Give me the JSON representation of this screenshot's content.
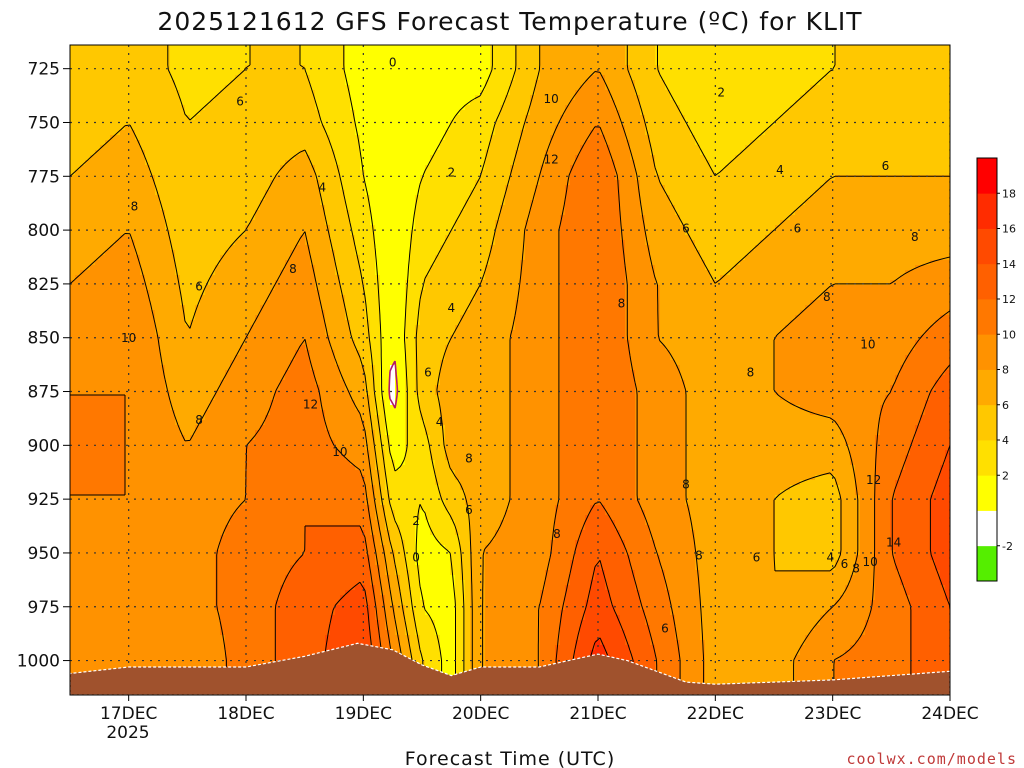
{
  "chart_data": {
    "type": "heatmap",
    "title": "2025121612 GFS Forecast Temperature (ºC) for KLIT",
    "xlabel": "Forecast Time (UTC)",
    "ylabel": "",
    "y_ticks": [
      725,
      750,
      775,
      800,
      825,
      850,
      875,
      900,
      925,
      950,
      975,
      1000
    ],
    "ylim": [
      1016,
      714
    ],
    "x_ticks": [
      "17DEC",
      "18DEC",
      "19DEC",
      "20DEC",
      "21DEC",
      "22DEC",
      "23DEC",
      "24DEC"
    ],
    "x_year_label": "2025",
    "xlim": [
      -0.5,
      7.0
    ],
    "grid": true,
    "colorbar": {
      "placement": "right",
      "levels": [
        -4,
        -2,
        0,
        2,
        4,
        6,
        8,
        10,
        12,
        14,
        16,
        18,
        20
      ],
      "tick_labels": [
        "-2",
        "2",
        "4",
        "6",
        "8",
        "10",
        "12",
        "14",
        "16",
        "18"
      ],
      "colors": [
        "#55ee00",
        "#ffffff",
        "#ffff00",
        "#ffe000",
        "#ffc800",
        "#ffaa00",
        "#ff9200",
        "#ff7800",
        "#ff6000",
        "#ff4a00",
        "#ff2c00",
        "#ff0000"
      ]
    },
    "temperature_profiles": {
      "pressure_levels": [
        1000,
        975,
        950,
        925,
        900,
        875,
        850,
        825,
        800,
        775,
        750,
        725
      ],
      "times": [
        -0.5,
        0.0,
        0.5,
        1.0,
        1.5,
        2.0,
        2.25,
        2.5,
        2.75,
        3.0,
        3.5,
        4.0,
        4.5,
        5.0,
        5.5,
        6.0,
        6.5,
        7.0
      ],
      "series": [
        {
          "time": -0.5,
          "values": [
            8,
            9,
            9.5,
            10,
            10,
            10,
            9,
            8,
            7,
            6,
            5,
            4
          ]
        },
        {
          "time": 0.0,
          "values": [
            8,
            9,
            10,
            10,
            10,
            10,
            10,
            9,
            8,
            7,
            6,
            5
          ]
        },
        {
          "time": 0.5,
          "values": [
            8,
            9,
            9,
            9,
            8,
            7,
            6,
            5.5,
            5,
            4.5,
            4,
            3.5
          ]
        },
        {
          "time": 1.0,
          "values": [
            11,
            11,
            11,
            10,
            10,
            9,
            8,
            7,
            6,
            5,
            4.5,
            4
          ]
        },
        {
          "time": 1.5,
          "values": [
            13,
            13,
            12,
            12,
            11,
            11,
            10,
            9,
            8,
            7,
            5,
            4
          ]
        },
        {
          "time": 2.0,
          "values": [
            16,
            15,
            13,
            11,
            9,
            7,
            5,
            4,
            3,
            2,
            1.5,
            1
          ]
        },
        {
          "time": 2.25,
          "values": [
            10,
            8,
            6,
            3,
            1,
            -1,
            0,
            0,
            0,
            0,
            0,
            0
          ]
        },
        {
          "time": 2.5,
          "values": [
            4,
            2,
            1,
            2,
            3,
            5,
            5,
            4,
            3,
            2,
            1,
            0
          ]
        },
        {
          "time": 2.75,
          "values": [
            1,
            1,
            2,
            5,
            7,
            7,
            6,
            5,
            4,
            3,
            2,
            1
          ]
        },
        {
          "time": 3.0,
          "values": [
            8,
            8,
            8,
            7,
            7,
            7,
            7,
            6,
            5,
            4,
            3,
            1
          ]
        },
        {
          "time": 3.5,
          "values": [
            10,
            10,
            9,
            9,
            9,
            9,
            9,
            9,
            9,
            8,
            7,
            6
          ]
        },
        {
          "time": 4.0,
          "values": [
            17,
            15,
            14,
            12,
            12,
            12,
            12,
            12,
            12,
            12,
            10,
            8
          ]
        },
        {
          "time": 4.5,
          "values": [
            12,
            11,
            10,
            9,
            9,
            9,
            8,
            8,
            7,
            6,
            5,
            4
          ]
        },
        {
          "time": 5.0,
          "values": [
            7,
            7,
            7,
            7,
            7,
            7,
            7,
            6,
            5,
            4,
            3,
            2
          ]
        },
        {
          "time": 5.5,
          "values": [
            7,
            6,
            6,
            6,
            7,
            8,
            8,
            7,
            6,
            5,
            4,
            3
          ]
        },
        {
          "time": 6.0,
          "values": [
            10,
            8,
            5,
            5,
            7,
            9,
            9,
            8,
            7,
            6,
            5,
            4
          ]
        },
        {
          "time": 6.5,
          "values": [
            11,
            11,
            12,
            12,
            11,
            10,
            9,
            8,
            7,
            6,
            5,
            4
          ]
        },
        {
          "time": 7.0,
          "values": [
            14,
            14,
            15,
            15,
            14,
            13,
            11,
            9,
            7,
            6,
            5,
            4
          ]
        }
      ]
    },
    "contour_labels": [
      {
        "text": "0",
        "time": 2.25,
        "pressure": 724
      },
      {
        "text": "2",
        "time": 2.75,
        "pressure": 775
      },
      {
        "text": "4",
        "time": 1.65,
        "pressure": 782
      },
      {
        "text": "4",
        "time": 2.75,
        "pressure": 838
      },
      {
        "text": "6",
        "time": 0.95,
        "pressure": 742
      },
      {
        "text": "8",
        "time": 0.05,
        "pressure": 791
      },
      {
        "text": "6",
        "time": 0.6,
        "pressure": 828
      },
      {
        "text": "8",
        "time": 1.4,
        "pressure": 820
      },
      {
        "text": "10",
        "time": 0.0,
        "pressure": 852
      },
      {
        "text": "12",
        "time": 1.55,
        "pressure": 883
      },
      {
        "text": "8",
        "time": 0.6,
        "pressure": 890
      },
      {
        "text": "10",
        "time": 1.8,
        "pressure": 905
      },
      {
        "text": "6",
        "time": 2.55,
        "pressure": 868
      },
      {
        "text": "4",
        "time": 2.65,
        "pressure": 891
      },
      {
        "text": "8",
        "time": 2.9,
        "pressure": 908
      },
      {
        "text": "6",
        "time": 2.9,
        "pressure": 932
      },
      {
        "text": "2",
        "time": 2.45,
        "pressure": 937
      },
      {
        "text": "0",
        "time": 2.45,
        "pressure": 954
      },
      {
        "text": "10",
        "time": 3.6,
        "pressure": 741
      },
      {
        "text": "12",
        "time": 3.6,
        "pressure": 769
      },
      {
        "text": "8",
        "time": 4.2,
        "pressure": 836
      },
      {
        "text": "8",
        "time": 3.65,
        "pressure": 943
      },
      {
        "text": "8",
        "time": 4.75,
        "pressure": 920
      },
      {
        "text": "8",
        "time": 4.86,
        "pressure": 953
      },
      {
        "text": "6",
        "time": 4.57,
        "pressure": 987
      },
      {
        "text": "2",
        "time": 5.05,
        "pressure": 738
      },
      {
        "text": "4",
        "time": 5.55,
        "pressure": 774
      },
      {
        "text": "6",
        "time": 6.45,
        "pressure": 772
      },
      {
        "text": "6",
        "time": 4.75,
        "pressure": 801
      },
      {
        "text": "6",
        "time": 5.7,
        "pressure": 801
      },
      {
        "text": "8",
        "time": 6.7,
        "pressure": 805
      },
      {
        "text": "8",
        "time": 5.95,
        "pressure": 833
      },
      {
        "text": "10",
        "time": 6.3,
        "pressure": 855
      },
      {
        "text": "8",
        "time": 5.3,
        "pressure": 868
      },
      {
        "text": "12",
        "time": 6.35,
        "pressure": 918
      },
      {
        "text": "14",
        "time": 6.52,
        "pressure": 947
      },
      {
        "text": "6",
        "time": 5.35,
        "pressure": 954
      },
      {
        "text": "4",
        "time": 5.98,
        "pressure": 954
      },
      {
        "text": "6",
        "time": 6.1,
        "pressure": 957
      },
      {
        "text": "8",
        "time": 6.2,
        "pressure": 959
      },
      {
        "text": "10",
        "time": 6.32,
        "pressure": 956
      }
    ],
    "terrain": {
      "color": "#a0522d",
      "surface_pressure": [
        [
          -0.5,
          1006
        ],
        [
          0.0,
          1003
        ],
        [
          0.5,
          1003
        ],
        [
          1.0,
          1003
        ],
        [
          1.5,
          998
        ],
        [
          1.95,
          992
        ],
        [
          2.25,
          995
        ],
        [
          2.5,
          1002
        ],
        [
          2.75,
          1007
        ],
        [
          3.0,
          1003
        ],
        [
          3.5,
          1003
        ],
        [
          4.0,
          997
        ],
        [
          4.25,
          1000
        ],
        [
          4.5,
          1005
        ],
        [
          4.75,
          1010
        ],
        [
          5.0,
          1011
        ],
        [
          5.5,
          1010
        ],
        [
          6.0,
          1009
        ],
        [
          6.5,
          1007
        ],
        [
          7.0,
          1005
        ]
      ]
    }
  },
  "watermark": "coolwx.com/models"
}
